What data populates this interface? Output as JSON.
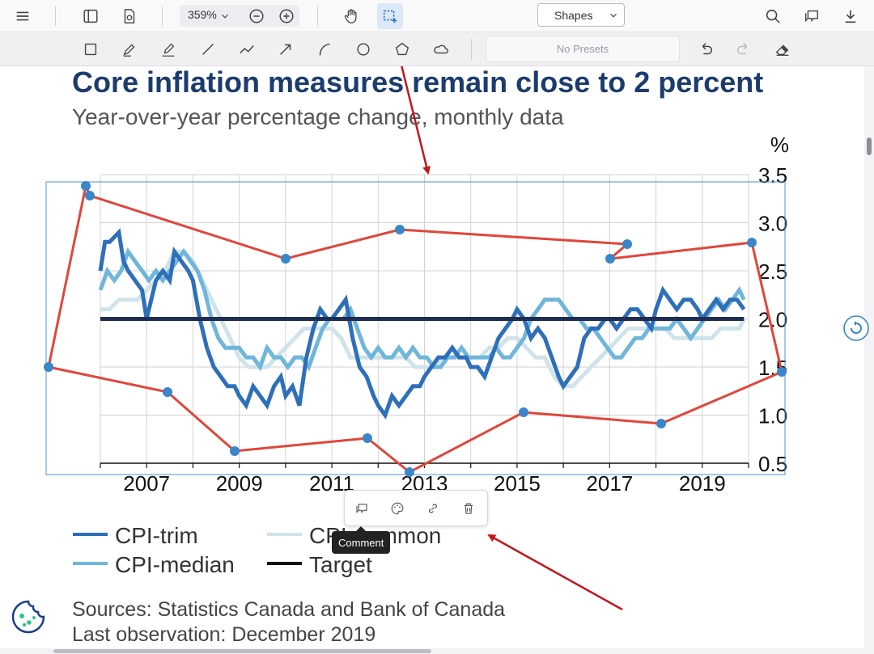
{
  "toolbar": {
    "zoom": "359%",
    "shapes_label": "Shapes",
    "presets_placeholder": "No Presets"
  },
  "popup": {
    "tooltip": "Comment"
  },
  "figure": {
    "title": "Core inflation measures remain close to 2 percent",
    "subtitle": "Year-over-year percentage change, monthly data",
    "unit": "%",
    "legend": [
      "CPI-trim",
      "CPI-common",
      "CPI-median",
      "Target"
    ],
    "source_line1": "Sources: Statistics Canada and Bank of Canada",
    "source_line2": "Last observation: December 2019"
  },
  "chart_data": {
    "type": "line",
    "title": "Core inflation measures remain close to 2 percent",
    "subtitle": "Year-over-year percentage change, monthly data",
    "ylabel": "%",
    "ylim": [
      0.5,
      3.5
    ],
    "yticks": [
      "0.5",
      "1.0",
      "1.5",
      "2.0",
      "2.5",
      "3.0",
      "3.5"
    ],
    "xlim": [
      2006.0,
      2020.0
    ],
    "xticks": [
      "2007",
      "2009",
      "2011",
      "2013",
      "2015",
      "2017",
      "2019"
    ],
    "colors": {
      "trim": "#2e6fba",
      "common": "#cfe3ea",
      "median": "#6fb6da",
      "target": "#1f2d52",
      "annotation": "#e0463a",
      "handle": "#3a86c8"
    },
    "series": [
      {
        "name": "CPI-trim",
        "x": [
          2006.0,
          2006.1,
          2006.2,
          2006.4,
          2006.5,
          2006.6,
          2006.75,
          2006.9,
          2007.0,
          2007.1,
          2007.2,
          2007.35,
          2007.5,
          2007.6,
          2007.75,
          2007.9,
          2008.0,
          2008.15,
          2008.3,
          2008.45,
          2008.6,
          2008.75,
          2008.9,
          2009.0,
          2009.15,
          2009.3,
          2009.45,
          2009.6,
          2009.75,
          2009.9,
          2010.0,
          2010.15,
          2010.3,
          2010.45,
          2010.6,
          2010.75,
          2010.9,
          2011.0,
          2011.15,
          2011.3,
          2011.45,
          2011.6,
          2011.75,
          2011.9,
          2012.0,
          2012.15,
          2012.3,
          2012.45,
          2012.6,
          2012.75,
          2012.9,
          2013.0,
          2013.15,
          2013.3,
          2013.45,
          2013.6,
          2013.75,
          2013.9,
          2014.0,
          2014.15,
          2014.3,
          2014.45,
          2014.6,
          2014.75,
          2014.9,
          2015.0,
          2015.15,
          2015.3,
          2015.45,
          2015.6,
          2015.75,
          2015.9,
          2016.0,
          2016.15,
          2016.3,
          2016.45,
          2016.6,
          2016.75,
          2016.9,
          2017.0,
          2017.15,
          2017.3,
          2017.45,
          2017.6,
          2017.75,
          2017.9,
          2018.0,
          2018.15,
          2018.3,
          2018.45,
          2018.6,
          2018.75,
          2018.9,
          2019.0,
          2019.15,
          2019.3,
          2019.45,
          2019.6,
          2019.75,
          2019.9
        ],
        "values": [
          2.5,
          2.8,
          2.8,
          2.9,
          2.6,
          2.5,
          2.4,
          2.3,
          2.0,
          2.2,
          2.4,
          2.5,
          2.4,
          2.7,
          2.6,
          2.5,
          2.4,
          2.0,
          1.7,
          1.5,
          1.4,
          1.3,
          1.3,
          1.2,
          1.1,
          1.3,
          1.2,
          1.1,
          1.3,
          1.4,
          1.2,
          1.3,
          1.1,
          1.6,
          1.9,
          2.1,
          2.0,
          2.0,
          2.1,
          2.2,
          1.8,
          1.5,
          1.4,
          1.2,
          1.1,
          1.0,
          1.2,
          1.1,
          1.2,
          1.3,
          1.3,
          1.4,
          1.5,
          1.6,
          1.6,
          1.7,
          1.6,
          1.6,
          1.5,
          1.5,
          1.4,
          1.6,
          1.8,
          1.9,
          2.0,
          2.1,
          2.0,
          1.8,
          1.9,
          1.8,
          1.6,
          1.4,
          1.3,
          1.4,
          1.5,
          1.8,
          1.9,
          1.9,
          2.0,
          2.0,
          1.9,
          2.0,
          2.1,
          2.1,
          2.0,
          1.9,
          2.1,
          2.3,
          2.2,
          2.1,
          2.2,
          2.2,
          2.1,
          2.0,
          2.1,
          2.2,
          2.1,
          2.2,
          2.2,
          2.1
        ]
      },
      {
        "name": "CPI-common",
        "x": [
          2006.0,
          2006.2,
          2006.4,
          2006.6,
          2006.8,
          2007.0,
          2007.2,
          2007.4,
          2007.6,
          2007.8,
          2008.0,
          2008.2,
          2008.4,
          2008.6,
          2008.8,
          2009.0,
          2009.2,
          2009.4,
          2009.6,
          2009.8,
          2010.0,
          2010.2,
          2010.4,
          2010.6,
          2010.8,
          2011.0,
          2011.2,
          2011.4,
          2011.6,
          2011.8,
          2012.0,
          2012.2,
          2012.4,
          2012.6,
          2012.8,
          2013.0,
          2013.2,
          2013.4,
          2013.6,
          2013.8,
          2014.0,
          2014.2,
          2014.4,
          2014.6,
          2014.8,
          2015.0,
          2015.2,
          2015.4,
          2015.6,
          2015.8,
          2016.0,
          2016.2,
          2016.4,
          2016.6,
          2016.8,
          2017.0,
          2017.2,
          2017.4,
          2017.6,
          2017.8,
          2018.0,
          2018.2,
          2018.4,
          2018.6,
          2018.8,
          2019.0,
          2019.2,
          2019.4,
          2019.6,
          2019.8,
          2019.9
        ],
        "values": [
          2.1,
          2.1,
          2.2,
          2.2,
          2.2,
          2.3,
          2.4,
          2.5,
          2.7,
          2.7,
          2.6,
          2.4,
          2.2,
          2.0,
          1.8,
          1.6,
          1.5,
          1.5,
          1.5,
          1.6,
          1.7,
          1.8,
          1.9,
          1.9,
          1.9,
          1.9,
          1.8,
          1.6,
          1.6,
          1.6,
          1.6,
          1.6,
          1.6,
          1.6,
          1.5,
          1.5,
          1.5,
          1.6,
          1.6,
          1.6,
          1.6,
          1.6,
          1.7,
          1.7,
          1.8,
          1.8,
          1.7,
          1.6,
          1.6,
          1.4,
          1.3,
          1.3,
          1.4,
          1.5,
          1.6,
          1.7,
          1.8,
          1.9,
          1.9,
          1.9,
          1.9,
          1.9,
          1.8,
          1.8,
          1.8,
          1.8,
          1.8,
          1.9,
          1.9,
          1.9,
          2.0
        ]
      },
      {
        "name": "CPI-median",
        "x": [
          2006.0,
          2006.15,
          2006.3,
          2006.45,
          2006.6,
          2006.75,
          2006.9,
          2007.05,
          2007.2,
          2007.35,
          2007.5,
          2007.65,
          2007.8,
          2007.95,
          2008.1,
          2008.25,
          2008.4,
          2008.55,
          2008.7,
          2008.85,
          2009.0,
          2009.15,
          2009.3,
          2009.45,
          2009.6,
          2009.75,
          2009.9,
          2010.05,
          2010.2,
          2010.35,
          2010.5,
          2010.65,
          2010.8,
          2010.95,
          2011.1,
          2011.25,
          2011.4,
          2011.55,
          2011.7,
          2011.85,
          2012.0,
          2012.15,
          2012.3,
          2012.45,
          2012.6,
          2012.75,
          2012.9,
          2013.05,
          2013.2,
          2013.35,
          2013.5,
          2013.65,
          2013.8,
          2013.95,
          2014.1,
          2014.25,
          2014.4,
          2014.55,
          2014.7,
          2014.85,
          2015.0,
          2015.15,
          2015.3,
          2015.45,
          2015.6,
          2015.75,
          2015.9,
          2016.05,
          2016.2,
          2016.35,
          2016.5,
          2016.65,
          2016.8,
          2016.95,
          2017.1,
          2017.25,
          2017.4,
          2017.55,
          2017.7,
          2017.85,
          2018.0,
          2018.15,
          2018.3,
          2018.45,
          2018.6,
          2018.75,
          2018.9,
          2019.05,
          2019.2,
          2019.35,
          2019.5,
          2019.65,
          2019.8,
          2019.9
        ],
        "values": [
          2.3,
          2.5,
          2.4,
          2.5,
          2.7,
          2.6,
          2.5,
          2.4,
          2.5,
          2.4,
          2.5,
          2.6,
          2.7,
          2.6,
          2.5,
          2.3,
          2.0,
          1.8,
          1.7,
          1.7,
          1.7,
          1.6,
          1.6,
          1.5,
          1.7,
          1.6,
          1.6,
          1.5,
          1.6,
          1.6,
          1.5,
          1.7,
          1.9,
          2.0,
          2.0,
          2.0,
          2.1,
          1.9,
          1.7,
          1.6,
          1.7,
          1.6,
          1.6,
          1.7,
          1.6,
          1.7,
          1.6,
          1.6,
          1.5,
          1.5,
          1.6,
          1.6,
          1.7,
          1.6,
          1.6,
          1.6,
          1.6,
          1.7,
          1.6,
          1.6,
          1.7,
          1.8,
          2.0,
          2.1,
          2.2,
          2.2,
          2.2,
          2.1,
          2.0,
          2.0,
          1.9,
          1.9,
          1.8,
          1.7,
          1.6,
          1.6,
          1.7,
          1.8,
          1.8,
          1.9,
          1.9,
          1.9,
          1.9,
          2.0,
          1.9,
          1.8,
          1.9,
          2.0,
          2.1,
          2.2,
          2.1,
          2.2,
          2.3,
          2.2
        ]
      },
      {
        "name": "Target",
        "x": [
          2006.0,
          2019.9
        ],
        "values": [
          2.0,
          2.0
        ]
      }
    ]
  }
}
